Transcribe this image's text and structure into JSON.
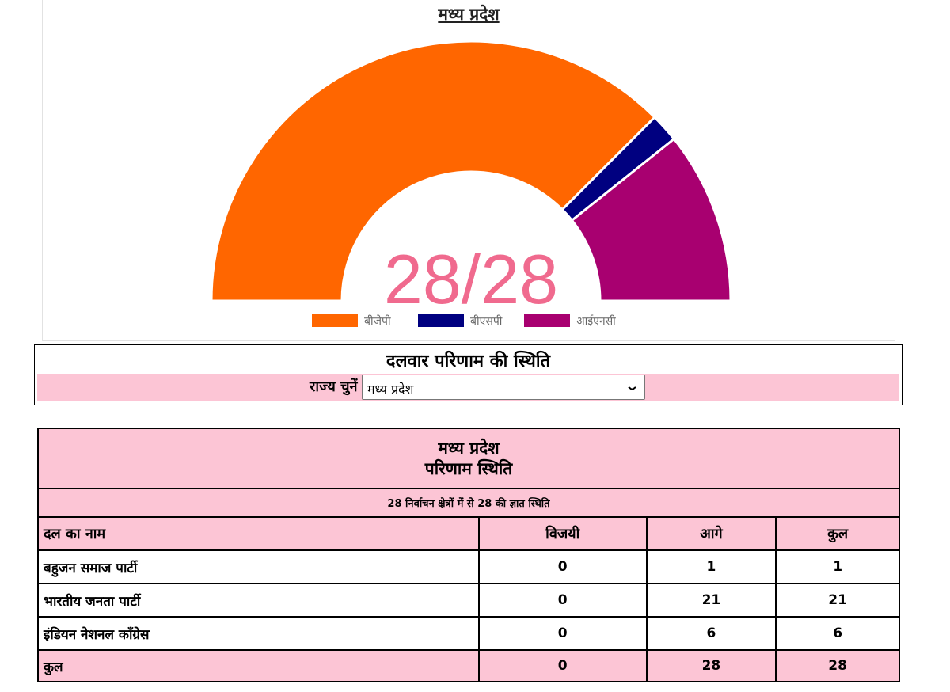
{
  "chart_data": {
    "type": "pie",
    "title": "मध्य प्रदेश",
    "center_label": "28/28",
    "categories": [
      "बीजेपी",
      "बीएसपी",
      "आईएनसी"
    ],
    "values": [
      21,
      1,
      6
    ],
    "colors": [
      "#ff6600",
      "#000080",
      "#a80070"
    ],
    "legend_position": "bottom"
  },
  "selector": {
    "title": "दलवार परिणाम की स्थिति",
    "label": "राज्य चुनें",
    "selected": "मध्य प्रदेश",
    "chevron": "⌄"
  },
  "table": {
    "state": "मध्य प्रदेश",
    "subtitle": "परिणाम स्थिति",
    "summary": "28 निर्वाचन क्षेत्रों में से 28 की ज्ञात स्थिति",
    "columns": [
      "दल का नाम",
      "विजयी",
      "आगे",
      "कुल"
    ],
    "rows": [
      {
        "name": "बहुजन समाज पार्टी",
        "won": "0",
        "leading": "1",
        "total": "1"
      },
      {
        "name": "भारतीय जनता पार्टी",
        "won": "0",
        "leading": "21",
        "total": "21"
      },
      {
        "name": "इंडियन नेशनल काँग्रेस",
        "won": "0",
        "leading": "6",
        "total": "6"
      }
    ],
    "total": {
      "name": "कुल",
      "won": "0",
      "leading": "28",
      "total": "28"
    }
  }
}
